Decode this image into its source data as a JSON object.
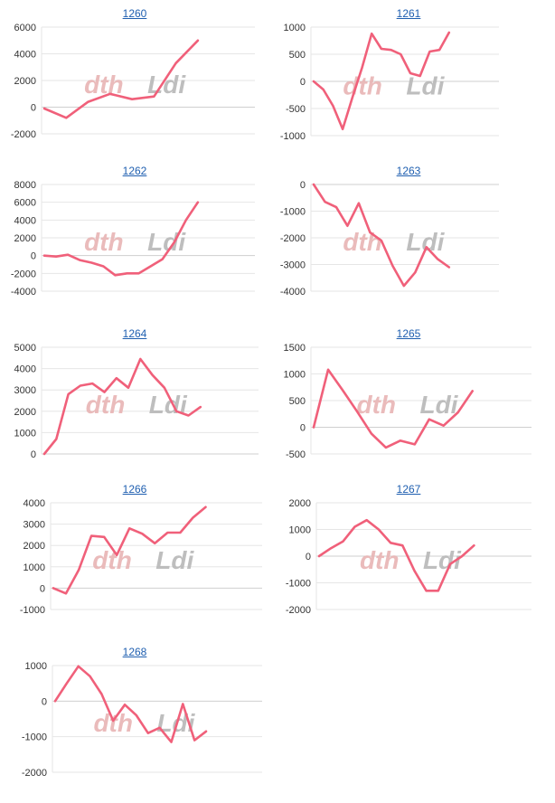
{
  "colors": {
    "series": "#f0607a",
    "title": "#1f5fb0"
  },
  "chart_data": [
    {
      "type": "line",
      "title": "1260",
      "ylim": [
        -2000,
        6000
      ],
      "yticks": [
        6000,
        4000,
        2000,
        0,
        -2000
      ],
      "ytick_labels": [
        "6000",
        "4000",
        "2000",
        "0",
        "-2000"
      ],
      "grid": true,
      "series": [
        {
          "values": [
            -100,
            -800,
            400,
            1000,
            600,
            800,
            3300,
            5000
          ]
        }
      ]
    },
    {
      "type": "line",
      "title": "1261",
      "ylim": [
        -1000,
        1000
      ],
      "yticks": [
        1000,
        500,
        0,
        -500,
        -1000
      ],
      "ytick_labels": [
        "1000",
        "500",
        "0",
        "-500",
        "-1000"
      ],
      "grid": true,
      "series": [
        {
          "values": [
            0,
            -150,
            -450,
            -880,
            -300,
            250,
            880,
            600,
            580,
            500,
            150,
            100,
            550,
            580,
            900
          ]
        }
      ]
    },
    {
      "type": "line",
      "title": "1262",
      "ylim": [
        -4000,
        8000
      ],
      "yticks": [
        8000,
        6000,
        4000,
        2000,
        0,
        -2000,
        -4000
      ],
      "ytick_labels": [
        "8000",
        "6000",
        "4000",
        "2000",
        "0",
        "-2000",
        "-4000"
      ],
      "grid": true,
      "series": [
        {
          "values": [
            0,
            -100,
            100,
            -500,
            -800,
            -1200,
            -2200,
            -2000,
            -2000,
            -1200,
            -400,
            1500,
            4000,
            6000
          ]
        }
      ]
    },
    {
      "type": "line",
      "title": "1263",
      "ylim": [
        -4000,
        0
      ],
      "yticks": [
        0,
        -1000,
        -2000,
        -3000,
        -4000
      ],
      "ytick_labels": [
        "0",
        "-1000",
        "-2000",
        "-3000",
        "-4000"
      ],
      "grid": true,
      "series": [
        {
          "values": [
            0,
            -650,
            -850,
            -1550,
            -700,
            -1800,
            -2100,
            -3050,
            -3800,
            -3300,
            -2350,
            -2800,
            -3100
          ]
        }
      ]
    },
    {
      "type": "line",
      "title": "1264",
      "ylim": [
        0,
        5000
      ],
      "yticks": [
        5000,
        4000,
        3000,
        2000,
        1000,
        0
      ],
      "ytick_labels": [
        "5000",
        "4000",
        "3000",
        "2000",
        "1000",
        "0"
      ],
      "grid": true,
      "series": [
        {
          "values": [
            0,
            700,
            2800,
            3200,
            3300,
            2900,
            3550,
            3100,
            4450,
            3700,
            3100,
            2000,
            1800,
            2200
          ]
        }
      ]
    },
    {
      "type": "line",
      "title": "1265",
      "ylim": [
        -500,
        1500
      ],
      "yticks": [
        1500,
        1000,
        500,
        0,
        -500
      ],
      "ytick_labels": [
        "1500",
        "1000",
        "500",
        "0",
        "-500"
      ],
      "grid": true,
      "series": [
        {
          "values": [
            0,
            1080,
            700,
            300,
            -120,
            -380,
            -250,
            -320,
            150,
            30,
            280,
            680
          ]
        }
      ]
    },
    {
      "type": "line",
      "title": "1266",
      "ylim": [
        -1000,
        4000
      ],
      "yticks": [
        4000,
        3000,
        2000,
        1000,
        0,
        -1000
      ],
      "ytick_labels": [
        "4000",
        "3000",
        "2000",
        "1000",
        "0",
        "-1000"
      ],
      "grid": true,
      "series": [
        {
          "values": [
            0,
            -250,
            850,
            2450,
            2400,
            1550,
            2800,
            2550,
            2100,
            2600,
            2600,
            3300,
            3800
          ]
        }
      ]
    },
    {
      "type": "line",
      "title": "1267",
      "ylim": [
        -2000,
        2000
      ],
      "yticks": [
        2000,
        1000,
        0,
        -1000,
        -2000
      ],
      "ytick_labels": [
        "2000",
        "1000",
        "0",
        "-1000",
        "-2000"
      ],
      "grid": true,
      "series": [
        {
          "values": [
            0,
            300,
            550,
            1100,
            1350,
            1000,
            500,
            400,
            -550,
            -1300,
            -1300,
            -300,
            0,
            400
          ]
        }
      ]
    },
    {
      "type": "line",
      "title": "1268",
      "ylim": [
        -2000,
        1000
      ],
      "yticks": [
        1000,
        0,
        -1000,
        -2000
      ],
      "ytick_labels": [
        "1000",
        "0",
        "-1000",
        "-2000"
      ],
      "grid": true,
      "series": [
        {
          "values": [
            0,
            500,
            980,
            700,
            200,
            -550,
            -100,
            -400,
            -900,
            -750,
            -1150,
            -80,
            -1100,
            -850
          ]
        }
      ]
    }
  ]
}
